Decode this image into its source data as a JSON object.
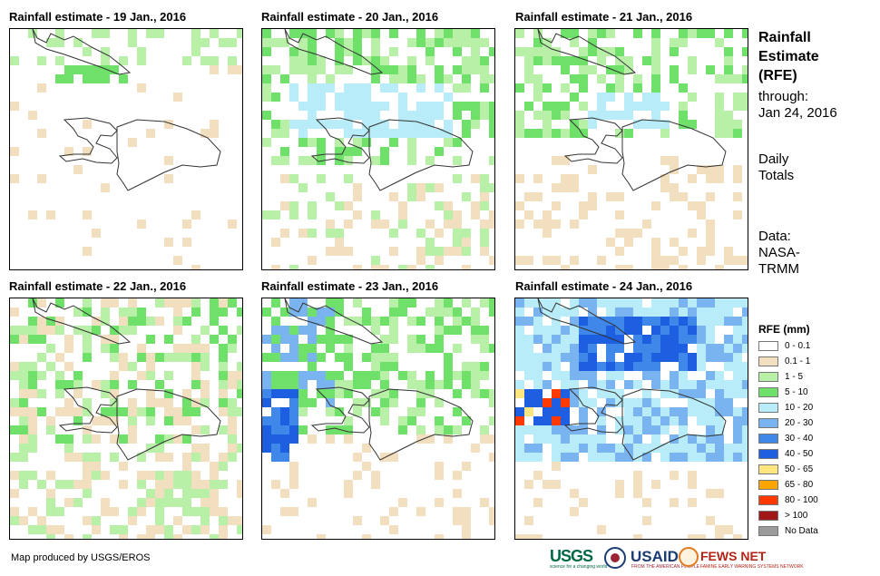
{
  "panels": [
    {
      "title": "Rainfall estimate - 19 Jan., 2016"
    },
    {
      "title": "Rainfall estimate - 20 Jan., 2016"
    },
    {
      "title": "Rainfall estimate - 21 Jan., 2016"
    },
    {
      "title": "Rainfall estimate - 22 Jan., 2016"
    },
    {
      "title": "Rainfall estimate - 23 Jan., 2016"
    },
    {
      "title": "Rainfall estimate - 24 Jan., 2016"
    }
  ],
  "sidebar": {
    "heading_line1": "Rainfall",
    "heading_line2": "Estimate",
    "heading_line3": "(RFE)",
    "through_label": "through:",
    "through_date": "Jan 24, 2016",
    "totals_line1": "Daily",
    "totals_line2": "Totals",
    "data_line1": "Data:",
    "data_line2": "NASA-",
    "data_line3": "TRMM"
  },
  "legend": {
    "title": "RFE (mm)",
    "items": [
      {
        "label": "0 - 0.1",
        "color": "#ffffff"
      },
      {
        "label": "0.1 - 1",
        "color": "#f2dfc0"
      },
      {
        "label": "1 - 5",
        "color": "#b8f0a8"
      },
      {
        "label": "5 - 10",
        "color": "#6fe06a"
      },
      {
        "label": "10 - 20",
        "color": "#b8ecf8"
      },
      {
        "label": "20 - 30",
        "color": "#79b4f0"
      },
      {
        "label": "30 - 40",
        "color": "#3f88ea"
      },
      {
        "label": "40 - 50",
        "color": "#1e5ee0"
      },
      {
        "label": "50 - 65",
        "color": "#ffe680"
      },
      {
        "label": "65 - 80",
        "color": "#ffa500"
      },
      {
        "label": "80 - 100",
        "color": "#ff3a00"
      },
      {
        "label": "> 100",
        "color": "#a01818"
      },
      {
        "label": "No Data",
        "color": "#9b9b9b"
      }
    ]
  },
  "footer": {
    "credit": "Map produced by USGS/EROS",
    "usgs": "USGS",
    "usgs_tagline": "science for a changing world",
    "usaid": "USAID",
    "usaid_tagline": "FROM THE AMERICAN PEOPLE",
    "fews": "FEWS NET",
    "fews_tagline": "FAMINE EARLY WARNING SYSTEMS NETWORK"
  }
}
